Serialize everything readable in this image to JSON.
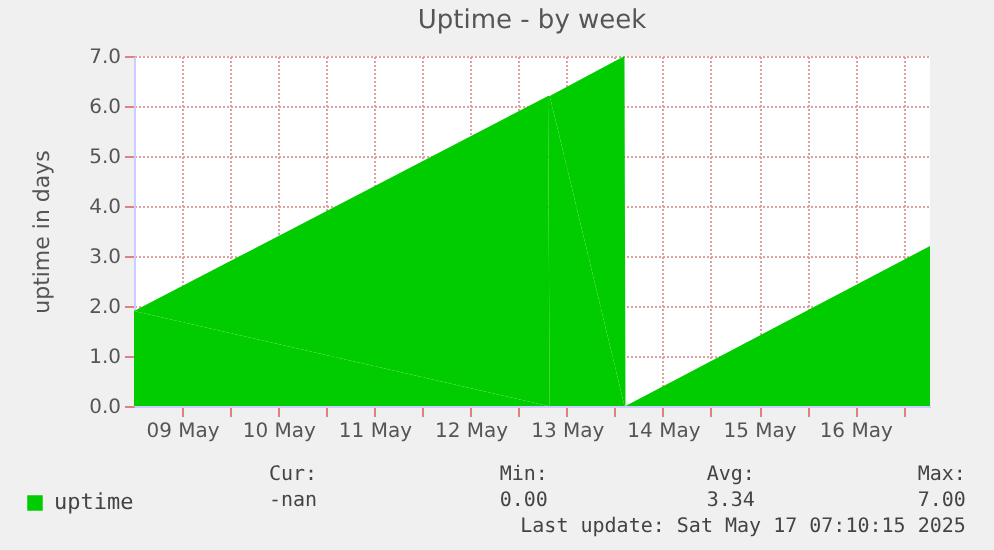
{
  "chart_data": {
    "type": "area",
    "title": "Uptime - by week",
    "ylabel": "uptime in days",
    "x": [
      "2025-05-09T00:00",
      "2025-05-13T07:20",
      "2025-05-13T07:30",
      "2025-05-13T07:45",
      "2025-05-14T02:25",
      "2025-05-14T02:40",
      "2025-05-17T06:40"
    ],
    "series": [
      {
        "name": "uptime",
        "color": "#00cc00",
        "values": [
          1.9,
          6.2,
          null,
          6.2,
          7.0,
          0.0,
          3.2
        ]
      }
    ],
    "xlim": [
      "2025-05-09T00:00",
      "2025-05-17T06:40"
    ],
    "xticks": [
      {
        "value": "2025-05-09T12:00",
        "label": "09 May"
      },
      {
        "value": "2025-05-10T12:00",
        "label": "10 May"
      },
      {
        "value": "2025-05-11T12:00",
        "label": "11 May"
      },
      {
        "value": "2025-05-12T12:00",
        "label": "12 May"
      },
      {
        "value": "2025-05-13T12:00",
        "label": "13 May"
      },
      {
        "value": "2025-05-14T12:00",
        "label": "14 May"
      },
      {
        "value": "2025-05-15T12:00",
        "label": "15 May"
      },
      {
        "value": "2025-05-16T12:00",
        "label": "16 May"
      },
      {
        "value": "2025-05-10T00:00",
        "label": null
      },
      {
        "value": "2025-05-11T00:00",
        "label": null
      },
      {
        "value": "2025-05-12T00:00",
        "label": null
      },
      {
        "value": "2025-05-13T00:00",
        "label": null
      },
      {
        "value": "2025-05-14T00:00",
        "label": null
      },
      {
        "value": "2025-05-15T00:00",
        "label": null
      },
      {
        "value": "2025-05-16T00:00",
        "label": null
      },
      {
        "value": "2025-05-17T00:00",
        "label": null
      }
    ],
    "ylim": [
      0,
      7
    ],
    "yticks": [
      {
        "value": 0,
        "label": "0.0"
      },
      {
        "value": 1,
        "label": "1.0"
      },
      {
        "value": 2,
        "label": "2.0"
      },
      {
        "value": 3,
        "label": "3.0"
      },
      {
        "value": 4,
        "label": "4.0"
      },
      {
        "value": 5,
        "label": "5.0"
      },
      {
        "value": 6,
        "label": "6.0"
      },
      {
        "value": 7,
        "label": "7.0"
      }
    ],
    "grid": true,
    "legend": "bottom",
    "annotations": [
      "Cur:",
      "-nan",
      "Min:",
      "0.00",
      "Avg:",
      "3.34",
      "Max:",
      "7.00",
      "Last update: Sat May 17 07:10:15 2025"
    ]
  }
}
